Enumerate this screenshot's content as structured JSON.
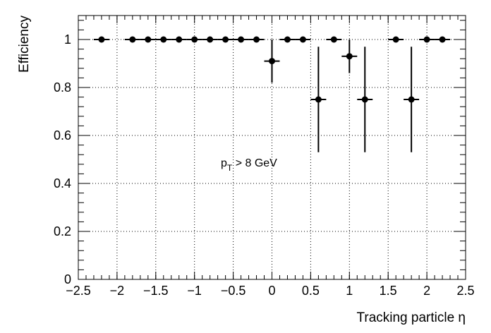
{
  "chart_data": {
    "type": "scatter",
    "xlabel": "Tracking particle η",
    "ylabel": "Efficiency",
    "xlim": [
      -2.5,
      2.5
    ],
    "ylim": [
      0,
      1.1
    ],
    "grid": true,
    "x_ticks": [
      -2.5,
      -2,
      -1.5,
      -1,
      -0.5,
      0,
      0.5,
      1,
      1.5,
      2,
      2.5
    ],
    "x_tick_labels": [
      "−2.5",
      "−2",
      "−1.5",
      "−1",
      "−0.5",
      "0",
      "0.5",
      "1",
      "1.5",
      "2",
      "2.5"
    ],
    "y_ticks": [
      0,
      0.2,
      0.4,
      0.6,
      0.8,
      1
    ],
    "y_tick_labels": [
      "0",
      "0.2",
      "0.4",
      "0.6",
      "0.8",
      "1"
    ],
    "bin_half_width": 0.1,
    "annotation": {
      "main": "p",
      "sub": "T",
      "rest": " > 8 GeV"
    },
    "points": [
      {
        "x": -2.2,
        "y": 1.0,
        "err_low": 0.0,
        "err_high": 0.0
      },
      {
        "x": -1.8,
        "y": 1.0,
        "err_low": 0.0,
        "err_high": 0.0
      },
      {
        "x": -1.6,
        "y": 1.0,
        "err_low": 0.0,
        "err_high": 0.0
      },
      {
        "x": -1.4,
        "y": 1.0,
        "err_low": 0.0,
        "err_high": 0.0
      },
      {
        "x": -1.2,
        "y": 1.0,
        "err_low": 0.0,
        "err_high": 0.0
      },
      {
        "x": -1.0,
        "y": 1.0,
        "err_low": 0.0,
        "err_high": 0.0
      },
      {
        "x": -0.8,
        "y": 1.0,
        "err_low": 0.0,
        "err_high": 0.0
      },
      {
        "x": -0.6,
        "y": 1.0,
        "err_low": 0.0,
        "err_high": 0.0
      },
      {
        "x": -0.4,
        "y": 1.0,
        "err_low": 0.0,
        "err_high": 0.0
      },
      {
        "x": -0.2,
        "y": 1.0,
        "err_low": 0.0,
        "err_high": 0.0
      },
      {
        "x": 0.0,
        "y": 0.91,
        "err_low": 0.09,
        "err_high": 0.09
      },
      {
        "x": 0.2,
        "y": 1.0,
        "err_low": 0.0,
        "err_high": 0.0
      },
      {
        "x": 0.4,
        "y": 1.0,
        "err_low": 0.0,
        "err_high": 0.0
      },
      {
        "x": 0.6,
        "y": 0.75,
        "err_low": 0.22,
        "err_high": 0.22
      },
      {
        "x": 0.8,
        "y": 1.0,
        "err_low": 0.0,
        "err_high": 0.0
      },
      {
        "x": 1.0,
        "y": 0.93,
        "err_low": 0.07,
        "err_high": 0.07
      },
      {
        "x": 1.2,
        "y": 0.75,
        "err_low": 0.22,
        "err_high": 0.22
      },
      {
        "x": 1.6,
        "y": 1.0,
        "err_low": 0.0,
        "err_high": 0.0
      },
      {
        "x": 1.8,
        "y": 0.75,
        "err_low": 0.22,
        "err_high": 0.22
      },
      {
        "x": 2.0,
        "y": 1.0,
        "err_low": 0.0,
        "err_high": 0.0
      },
      {
        "x": 2.2,
        "y": 1.0,
        "err_low": 0.0,
        "err_high": 0.0
      }
    ]
  }
}
